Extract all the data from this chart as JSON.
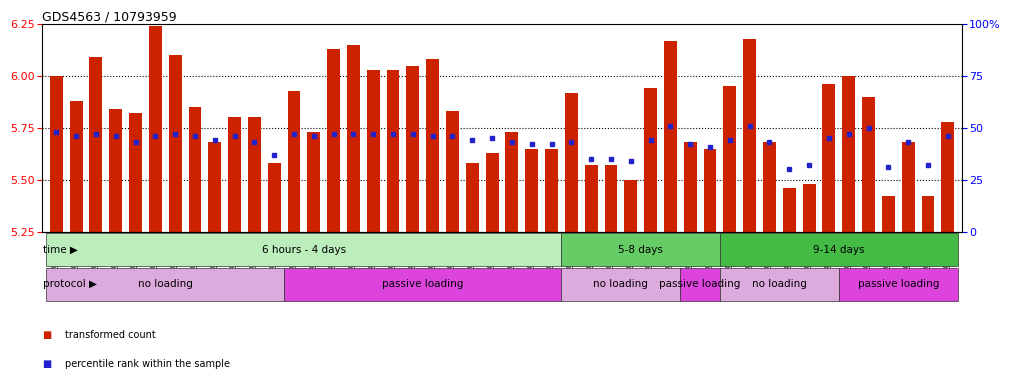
{
  "title": "GDS4563 / 10793959",
  "samples": [
    "GSM930471",
    "GSM930472",
    "GSM930473",
    "GSM930474",
    "GSM930475",
    "GSM930476",
    "GSM930477",
    "GSM930478",
    "GSM930479",
    "GSM930480",
    "GSM930481",
    "GSM930482",
    "GSM930483",
    "GSM930494",
    "GSM930495",
    "GSM930496",
    "GSM930497",
    "GSM930498",
    "GSM930499",
    "GSM930500",
    "GSM930501",
    "GSM930502",
    "GSM930503",
    "GSM930504",
    "GSM930505",
    "GSM930506",
    "GSM930484",
    "GSM930485",
    "GSM930486",
    "GSM930487",
    "GSM930507",
    "GSM930508",
    "GSM930509",
    "GSM930510",
    "GSM930488",
    "GSM930489",
    "GSM930490",
    "GSM930491",
    "GSM930492",
    "GSM930493",
    "GSM930511",
    "GSM930512",
    "GSM930513",
    "GSM930514",
    "GSM930515",
    "GSM930516"
  ],
  "bar_values": [
    6.0,
    5.88,
    6.09,
    5.84,
    5.82,
    6.24,
    6.1,
    5.85,
    5.68,
    5.8,
    5.8,
    5.58,
    5.93,
    5.73,
    6.13,
    6.15,
    6.03,
    6.03,
    6.05,
    6.08,
    5.83,
    5.58,
    5.63,
    5.73,
    5.65,
    5.65,
    5.92,
    5.57,
    5.57,
    5.5,
    5.94,
    6.17,
    5.68,
    5.65,
    5.95,
    6.18,
    5.68,
    5.46,
    5.48,
    5.96,
    6.0,
    5.9,
    5.42,
    5.68,
    5.42,
    5.78
  ],
  "percentile_values": [
    48,
    46,
    47,
    46,
    43,
    46,
    47,
    46,
    44,
    46,
    43,
    37,
    47,
    46,
    47,
    47,
    47,
    47,
    47,
    46,
    46,
    44,
    45,
    43,
    42,
    42,
    43,
    35,
    35,
    34,
    44,
    51,
    42,
    41,
    44,
    51,
    43,
    30,
    32,
    45,
    47,
    50,
    31,
    43,
    32,
    46
  ],
  "ylim_left": [
    5.25,
    6.25
  ],
  "ylim_right": [
    0,
    100
  ],
  "bar_color": "#cc2200",
  "percentile_color": "#2222cc",
  "bar_bottom": 5.25,
  "time_groups": [
    {
      "label": "6 hours - 4 days",
      "start": 0,
      "end": 26,
      "color": "#bbeebb"
    },
    {
      "label": "5-8 days",
      "start": 26,
      "end": 34,
      "color": "#66cc66"
    },
    {
      "label": "9-14 days",
      "start": 34,
      "end": 46,
      "color": "#44bb44"
    }
  ],
  "protocol_groups": [
    {
      "label": "no loading",
      "start": 0,
      "end": 12,
      "color": "#ddaadd"
    },
    {
      "label": "passive loading",
      "start": 12,
      "end": 26,
      "color": "#dd44dd"
    },
    {
      "label": "no loading",
      "start": 26,
      "end": 32,
      "color": "#ddaadd"
    },
    {
      "label": "passive loading",
      "start": 32,
      "end": 34,
      "color": "#dd44dd"
    },
    {
      "label": "no loading",
      "start": 34,
      "end": 40,
      "color": "#ddaadd"
    },
    {
      "label": "passive loading",
      "start": 40,
      "end": 46,
      "color": "#dd44dd"
    }
  ],
  "yticks_left": [
    5.25,
    5.5,
    5.75,
    6.0,
    6.25
  ],
  "yticks_right": [
    0,
    25,
    50,
    75,
    100
  ],
  "dotted_lines": [
    5.5,
    5.75,
    6.0
  ],
  "background_color": "#ffffff",
  "legend_items": [
    {
      "color": "#cc2200",
      "label": "transformed count"
    },
    {
      "color": "#2222cc",
      "label": "percentile rank within the sample"
    }
  ]
}
